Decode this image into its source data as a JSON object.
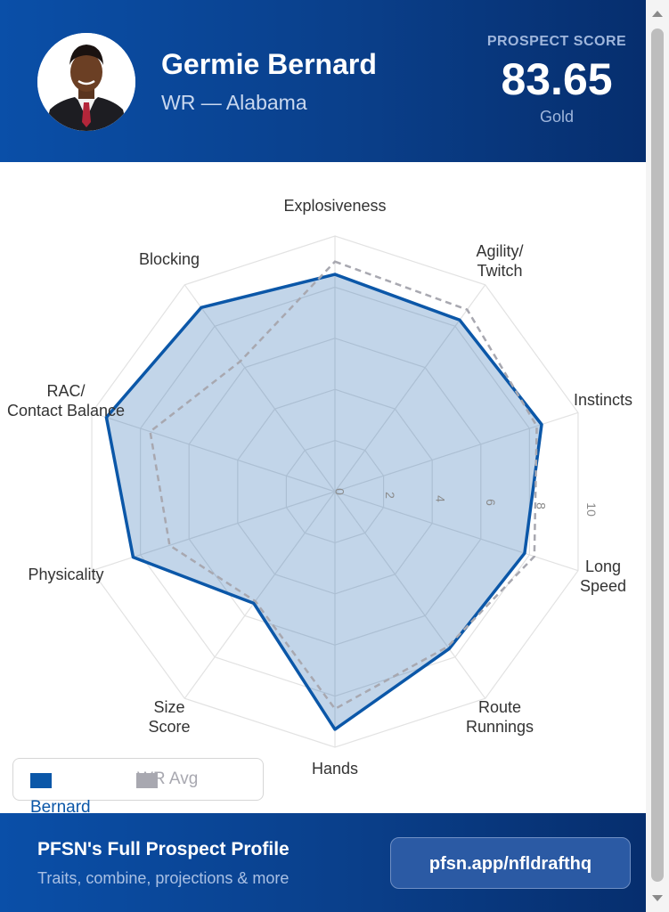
{
  "header": {
    "player_name": "Germie Bernard",
    "player_sub": "WR — Alabama",
    "score_label": "PROSPECT SCORE",
    "score_value": "83.65",
    "score_tier": "Gold"
  },
  "chart_data": {
    "type": "radar",
    "title": "",
    "categories": [
      "Explosiveness",
      "Agility/ Twitch",
      "Instincts",
      "Long Speed",
      "Route Runnings",
      "Hands",
      "Size Score",
      "Physicality",
      "RAC/ Contact Balance",
      "Blocking"
    ],
    "ticks": [
      "0",
      "2",
      "4",
      "6",
      "8",
      "10"
    ],
    "rlim": [
      0,
      10
    ],
    "grid": true,
    "series": [
      {
        "name": "Bernard",
        "values": [
          8.5,
          8.3,
          8.5,
          7.8,
          7.6,
          9.3,
          5.4,
          8.3,
          9.4,
          8.9
        ]
      },
      {
        "name": "WR Avg",
        "values": [
          9.0,
          8.8,
          8.3,
          8.2,
          7.5,
          8.5,
          5.3,
          6.8,
          7.6,
          6.3
        ]
      }
    ],
    "colors": {
      "Bernard": "#0b57a8",
      "WR Avg": "#a8a8b0"
    },
    "legend": "bottom-left"
  },
  "legend": {
    "items": [
      {
        "label": "Bernard",
        "color": "#0b57a8"
      },
      {
        "label": "WR Avg",
        "color": "#a8a8b0"
      }
    ]
  },
  "footer": {
    "title": "PFSN's Full Prospect Profile",
    "subtitle": "Traits, combine, projections & more",
    "cta_label": "pfsn.app/nfldrafthq"
  }
}
